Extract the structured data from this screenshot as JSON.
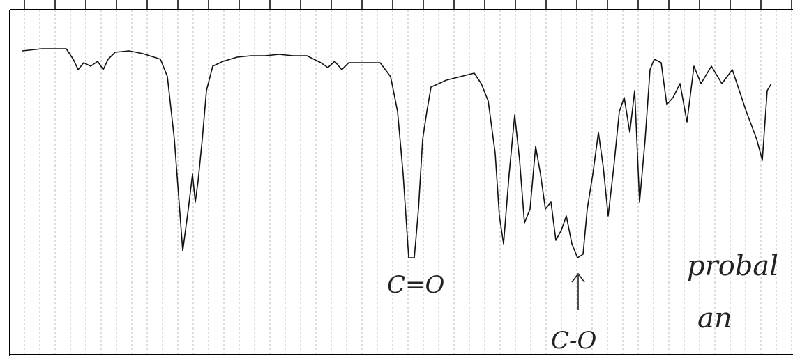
{
  "annotations": {
    "carbonyl": "C=O",
    "ether": "C-O",
    "note_line1": "probal",
    "note_line2": "an"
  }
}
